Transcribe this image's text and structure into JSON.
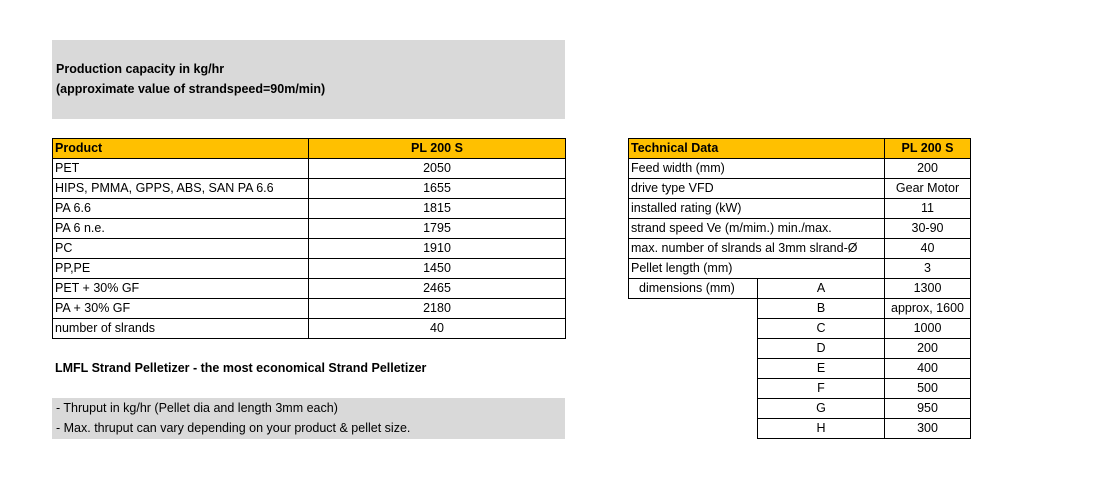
{
  "header": {
    "line1": "Production capacity in kg/hr",
    "line2": "(approximate value of strandspeed=90m/min)"
  },
  "capacity_table": {
    "col_product": "Product",
    "col_model": "PL 200 S",
    "rows": [
      {
        "product": "PET",
        "value": "2050"
      },
      {
        "product": "HIPS, PMMA, GPPS, ABS, SAN PA 6.6",
        "value": "1655"
      },
      {
        "product": "PA 6.6",
        "value": "1815"
      },
      {
        "product": "PA 6 n.e.",
        "value": "1795"
      },
      {
        "product": "PC",
        "value": "1910"
      },
      {
        "product": "PP,PE",
        "value": "1450"
      },
      {
        "product": "PET + 30% GF",
        "value": "2465"
      },
      {
        "product": "PA + 30% GF",
        "value": "2180"
      },
      {
        "product": "number of slrands",
        "value": "40"
      }
    ]
  },
  "tagline": "LMFL Strand Pelletizer - the most economical Strand Pelletizer",
  "notes": [
    "- Thruput in kg/hr (Pellet dia and length 3mm each)",
    "- Max. thruput can vary depending on your product & pellet size."
  ],
  "tech_table": {
    "col_label": "Technical Data",
    "col_model": "PL 200 S",
    "rows": [
      {
        "label": "Feed width (mm)",
        "value": "200"
      },
      {
        "label": "drive type VFD",
        "value": "Gear Motor"
      },
      {
        "label": "installed rating (kW)",
        "value": "11"
      },
      {
        "label": "strand speed Ve (m/mim.) min./max.",
        "value": "30-90"
      },
      {
        "label": "max. number of slrands al 3mm slrand-Ø",
        "value": "40"
      },
      {
        "label": "Pellet length (mm)",
        "value": "3"
      }
    ],
    "dimensions_label": "dimensions (mm)",
    "dimensions": [
      {
        "key": "A",
        "value": "1300"
      },
      {
        "key": "B",
        "value": "approx, 1600"
      },
      {
        "key": "C",
        "value": "1000"
      },
      {
        "key": "D",
        "value": "200"
      },
      {
        "key": "E",
        "value": "400"
      },
      {
        "key": "F",
        "value": "500"
      },
      {
        "key": "G",
        "value": "950"
      },
      {
        "key": "H",
        "value": "300"
      }
    ]
  }
}
